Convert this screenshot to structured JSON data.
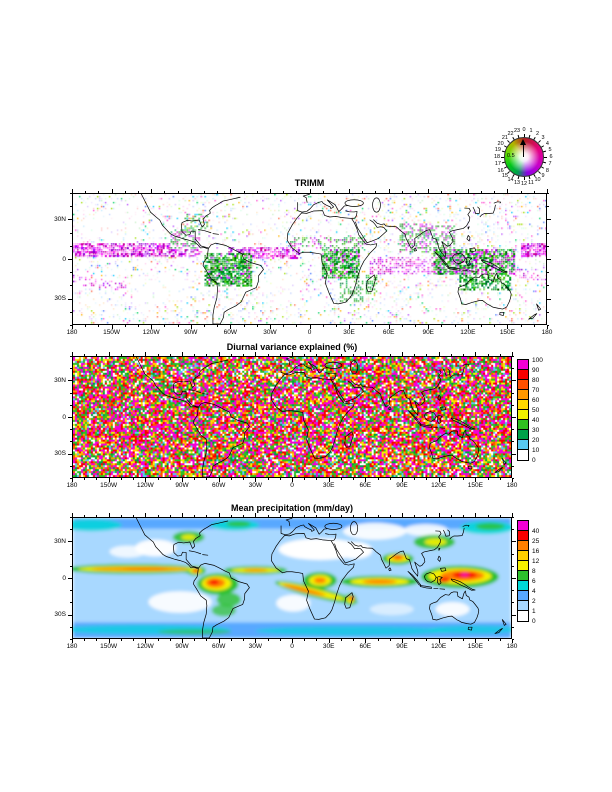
{
  "figure": {
    "panels": [
      {
        "key": "phase",
        "title": "TRIMM"
      },
      {
        "key": "variance",
        "title": "Diurnal variance explained (%)",
        "colorbar": {
          "labels_top_to_bottom": [
            "100",
            "90",
            "80",
            "70",
            "60",
            "50",
            "40",
            "30",
            "20",
            "10",
            "0"
          ],
          "cells_top_to_bottom": [
            "#f400d6",
            "#f80000",
            "#ff5000",
            "#ff9800",
            "#ffd800",
            "#f0f000",
            "#30c020",
            "#00a048",
            "#58c8f0",
            "#ffffff"
          ]
        }
      },
      {
        "key": "precip",
        "title": "Mean precipitation (mm/day)",
        "colorbar": {
          "labels_top_to_bottom": [
            "40",
            "25",
            "16",
            "12",
            "8",
            "6",
            "4",
            "2",
            "1",
            "0"
          ],
          "cells_top_to_bottom": [
            "#f400d6",
            "#fa0000",
            "#ff8000",
            "#ffd000",
            "#f6f000",
            "#2cc02c",
            "#00d8d8",
            "#58a8ff",
            "#a8d8ff",
            "#ffffff"
          ]
        }
      }
    ],
    "axes": {
      "lon_ticks": [
        "180",
        "150W",
        "120W",
        "90W",
        "60W",
        "30W",
        "0",
        "30E",
        "60E",
        "90E",
        "120E",
        "150E",
        "180"
      ],
      "lat_ticks": [
        "30N",
        "0",
        "30S"
      ]
    },
    "wheel": {
      "hours": [
        "0",
        "1",
        "2",
        "3",
        "4",
        "5",
        "6",
        "7",
        "8",
        "9",
        "10",
        "11",
        "12",
        "13",
        "14",
        "15",
        "16",
        "17",
        "18",
        "19",
        "20",
        "21",
        "22",
        "23"
      ],
      "center_label": "0.5"
    }
  },
  "chart_data": [
    {
      "type": "heatmap",
      "title": "TRIMM",
      "quantity": "phase of diurnal precipitation cycle; hue encodes local hour (0-23) of maximum, per circular legend",
      "x_tick_labels": [
        "180",
        "150W",
        "120W",
        "90W",
        "60W",
        "30W",
        "0",
        "30E",
        "60E",
        "90E",
        "120E",
        "150E",
        "180"
      ],
      "y_tick_labels": [
        "30N",
        "0",
        "30S"
      ],
      "legend": {
        "style": "circular-color-wheel",
        "hour_labels": [
          "0",
          "1",
          "2",
          "3",
          "4",
          "5",
          "6",
          "7",
          "8",
          "9",
          "10",
          "11",
          "12",
          "13",
          "14",
          "15",
          "16",
          "17",
          "18",
          "19",
          "20",
          "21",
          "22",
          "23"
        ],
        "center_label": "0.5"
      },
      "grid": false
    },
    {
      "type": "heatmap",
      "title": "Diurnal variance explained (%)",
      "levels": [
        0,
        10,
        20,
        30,
        40,
        50,
        60,
        70,
        80,
        90,
        100
      ],
      "palette_low_to_high": [
        "#ffffff",
        "#58c8f0",
        "#00a048",
        "#30c020",
        "#f0f000",
        "#ffd800",
        "#ff9800",
        "#ff5000",
        "#f80000",
        "#f400d6"
      ],
      "x_tick_labels": [
        "180",
        "150W",
        "120W",
        "90W",
        "60W",
        "30W",
        "0",
        "30E",
        "60E",
        "90E",
        "120E",
        "150E",
        "180"
      ],
      "y_tick_labels": [
        "30N",
        "0",
        "30S"
      ],
      "legend_position": "right"
    },
    {
      "type": "heatmap",
      "title": "Mean precipitation (mm/day)",
      "levels": [
        0,
        1,
        2,
        4,
        6,
        8,
        12,
        16,
        25,
        40
      ],
      "palette_low_to_high": [
        "#ffffff",
        "#a8d8ff",
        "#58a8ff",
        "#00d8d8",
        "#2cc02c",
        "#f6f000",
        "#ffd000",
        "#ff8000",
        "#fa0000",
        "#f400d6"
      ],
      "x_tick_labels": [
        "180",
        "150W",
        "120W",
        "90W",
        "60W",
        "30W",
        "0",
        "30E",
        "60E",
        "90E",
        "120E",
        "150E",
        "180"
      ],
      "y_tick_labels": [
        "30N",
        "0",
        "30S"
      ],
      "legend_position": "right"
    }
  ]
}
